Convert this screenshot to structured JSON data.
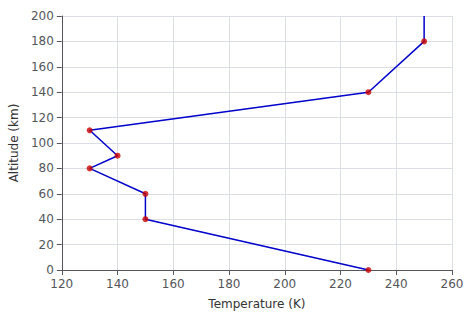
{
  "chart_data": {
    "type": "line",
    "xlabel": "Temperature (K)",
    "ylabel": "Altitude (km)",
    "series": [
      {
        "type": "line",
        "color": "#0000cc",
        "marker": "none",
        "x": [
          230,
          150,
          150,
          130,
          140,
          130,
          230,
          250,
          250
        ],
        "values": [
          0,
          40,
          60,
          80,
          90,
          110,
          140,
          180,
          200
        ]
      },
      {
        "type": "scatter",
        "color": "#cc0000",
        "marker": "circle",
        "x": [
          230,
          150,
          150,
          130,
          140,
          130,
          230,
          250
        ],
        "values": [
          0,
          40,
          60,
          80,
          90,
          110,
          140,
          180
        ]
      }
    ],
    "xlim": [
      120,
      260
    ],
    "xticks": [
      120,
      140,
      160,
      180,
      200,
      220,
      240,
      260
    ],
    "ylim": [
      0,
      200
    ],
    "yticks": [
      0,
      20,
      40,
      60,
      80,
      100,
      120,
      140,
      160,
      180,
      200
    ],
    "grid": true
  }
}
